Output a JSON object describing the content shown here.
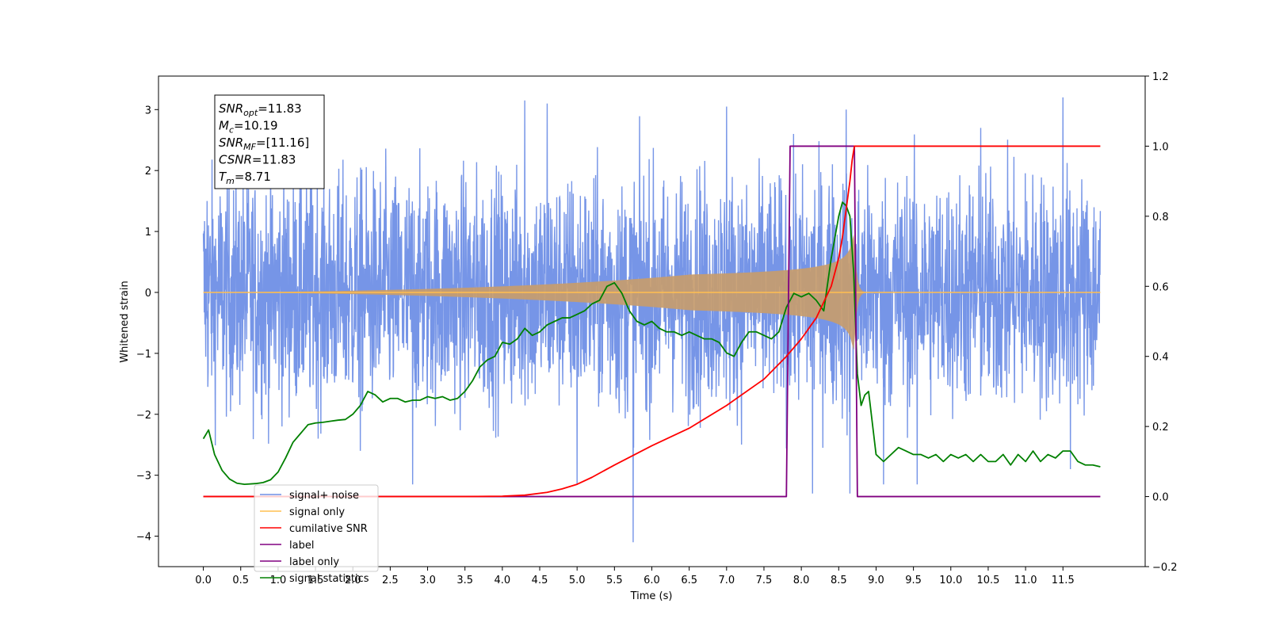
{
  "chart_data": {
    "type": "line",
    "xlabel": "Time (s)",
    "ylabel_left": "Whitened strain",
    "xlim": [
      -0.6,
      12.6
    ],
    "ylim_left": [
      -4.5,
      3.55
    ],
    "ylim_right": [
      -0.2,
      1.2
    ],
    "x_ticks": [
      "0.0",
      "0.5",
      "1.0",
      "1.5",
      "2.0",
      "2.5",
      "3.0",
      "3.5",
      "4.0",
      "4.5",
      "5.0",
      "5.5",
      "6.0",
      "6.5",
      "7.0",
      "7.5",
      "8.0",
      "8.5",
      "9.0",
      "9.5",
      "10.0",
      "10.5",
      "11.0",
      "11.5"
    ],
    "y_ticks_left": [
      "3",
      "2",
      "1",
      "0",
      "−1",
      "−2",
      "−3",
      "−4"
    ],
    "y_ticks_right": [
      "1.2",
      "1.0",
      "0.8",
      "0.6",
      "0.4",
      "0.2",
      "0.0",
      "−0.2"
    ],
    "info_box": [
      {
        "base": "SNR",
        "sub": "opt",
        "value": "=11.83"
      },
      {
        "base": "M",
        "sub": "c",
        "value": "=10.19"
      },
      {
        "base": "SNR",
        "sub": "MF",
        "value": "=[11.16]"
      },
      {
        "base": "CSNR",
        "sub": "",
        "value": "=11.83"
      },
      {
        "base": "T",
        "sub": "m",
        "value": "=8.71"
      }
    ],
    "legend": {
      "placement": "lower-left",
      "entries": [
        {
          "label": "signal+ noise",
          "color": "#6f8fe6"
        },
        {
          "label": "signal only",
          "color": "#ffbf50"
        },
        {
          "label": "cumilative SNR",
          "color": "#ff0000"
        },
        {
          "label": "label",
          "color": "#800080"
        },
        {
          "label": "label only",
          "color": "#800080"
        },
        {
          "label": "signal statistics",
          "color": "#008000"
        }
      ]
    },
    "series": [
      {
        "name": "signal+ noise",
        "axis": "left",
        "color": "#6f8fe6",
        "x_range": [
          0.0,
          12.0
        ],
        "stats": {
          "std": 0.95,
          "min": -4.1,
          "max": 3.2
        },
        "spikes": [
          [
            0.05,
            1.5
          ],
          [
            2.1,
            -2.6
          ],
          [
            2.8,
            -3.15
          ],
          [
            4.3,
            3.15
          ],
          [
            4.6,
            3.1
          ],
          [
            5.0,
            -3.15
          ],
          [
            5.75,
            -4.1
          ],
          [
            7.0,
            3.05
          ],
          [
            8.15,
            -3.3
          ],
          [
            8.6,
            3.0
          ],
          [
            8.65,
            -3.3
          ],
          [
            9.1,
            -3.15
          ],
          [
            9.55,
            -3.15
          ],
          [
            10.4,
            2.7
          ],
          [
            11.5,
            3.2
          ],
          [
            11.6,
            -2.9
          ]
        ]
      },
      {
        "name": "signal only",
        "axis": "left",
        "color": "#ffbf50",
        "x_range": [
          0.0,
          12.0
        ],
        "merger_time": 8.71,
        "peak_amplitude": 0.95
      },
      {
        "name": "cumilative SNR",
        "axis": "right",
        "x": [
          0.0,
          3.5,
          4.0,
          4.3,
          4.6,
          4.8,
          5.0,
          5.2,
          5.5,
          6.0,
          6.5,
          7.0,
          7.5,
          7.8,
          8.0,
          8.2,
          8.4,
          8.5,
          8.55,
          8.6,
          8.65,
          8.68,
          8.71,
          12.0
        ],
        "values": [
          0.0,
          0.0,
          0.001,
          0.004,
          0.012,
          0.022,
          0.035,
          0.055,
          0.09,
          0.145,
          0.195,
          0.26,
          0.335,
          0.4,
          0.45,
          0.51,
          0.6,
          0.68,
          0.74,
          0.82,
          0.9,
          0.96,
          1.0,
          1.0
        ]
      },
      {
        "name": "label",
        "axis": "right",
        "x": [
          0.0,
          7.8,
          7.85,
          8.71,
          8.75,
          12.0
        ],
        "values": [
          0.0,
          0.0,
          1.0,
          1.0,
          0.0,
          0.0
        ]
      },
      {
        "name": "signal statistics",
        "axis": "right",
        "x": [
          0.0,
          0.07,
          0.15,
          0.25,
          0.35,
          0.45,
          0.55,
          0.7,
          0.8,
          0.9,
          1.0,
          1.1,
          1.2,
          1.3,
          1.4,
          1.5,
          1.6,
          1.7,
          1.8,
          1.9,
          2.0,
          2.1,
          2.2,
          2.3,
          2.4,
          2.5,
          2.6,
          2.7,
          2.8,
          2.9,
          3.0,
          3.1,
          3.2,
          3.3,
          3.4,
          3.5,
          3.6,
          3.7,
          3.8,
          3.9,
          4.0,
          4.1,
          4.2,
          4.3,
          4.4,
          4.5,
          4.6,
          4.7,
          4.8,
          4.9,
          5.0,
          5.1,
          5.2,
          5.3,
          5.4,
          5.5,
          5.6,
          5.7,
          5.8,
          5.9,
          6.0,
          6.1,
          6.2,
          6.3,
          6.4,
          6.5,
          6.6,
          6.7,
          6.8,
          6.9,
          7.0,
          7.1,
          7.2,
          7.3,
          7.4,
          7.5,
          7.6,
          7.7,
          7.8,
          7.9,
          8.0,
          8.1,
          8.2,
          8.3,
          8.4,
          8.5,
          8.55,
          8.6,
          8.65,
          8.7,
          8.75,
          8.8,
          8.85,
          8.9,
          9.0,
          9.1,
          9.2,
          9.3,
          9.4,
          9.5,
          9.6,
          9.7,
          9.8,
          9.9,
          10.0,
          10.1,
          10.2,
          10.3,
          10.4,
          10.5,
          10.6,
          10.7,
          10.8,
          10.9,
          11.0,
          11.1,
          11.2,
          11.3,
          11.4,
          11.5,
          11.6,
          11.7,
          11.8,
          11.9,
          12.0
        ],
        "values": [
          0.165,
          0.19,
          0.12,
          0.075,
          0.05,
          0.038,
          0.035,
          0.037,
          0.04,
          0.048,
          0.07,
          0.11,
          0.155,
          0.18,
          0.205,
          0.21,
          0.212,
          0.215,
          0.218,
          0.22,
          0.235,
          0.26,
          0.3,
          0.29,
          0.27,
          0.28,
          0.28,
          0.27,
          0.275,
          0.275,
          0.285,
          0.28,
          0.285,
          0.275,
          0.28,
          0.3,
          0.33,
          0.37,
          0.39,
          0.4,
          0.44,
          0.435,
          0.45,
          0.48,
          0.46,
          0.47,
          0.49,
          0.5,
          0.51,
          0.51,
          0.52,
          0.53,
          0.55,
          0.56,
          0.6,
          0.61,
          0.58,
          0.53,
          0.5,
          0.49,
          0.5,
          0.48,
          0.47,
          0.47,
          0.46,
          0.47,
          0.46,
          0.45,
          0.45,
          0.44,
          0.41,
          0.4,
          0.44,
          0.47,
          0.47,
          0.46,
          0.45,
          0.47,
          0.54,
          0.58,
          0.57,
          0.58,
          0.56,
          0.53,
          0.68,
          0.8,
          0.84,
          0.83,
          0.8,
          0.64,
          0.35,
          0.26,
          0.29,
          0.3,
          0.12,
          0.1,
          0.12,
          0.14,
          0.13,
          0.12,
          0.12,
          0.11,
          0.12,
          0.1,
          0.12,
          0.11,
          0.12,
          0.1,
          0.12,
          0.1,
          0.1,
          0.12,
          0.09,
          0.12,
          0.1,
          0.13,
          0.1,
          0.12,
          0.11,
          0.13,
          0.13,
          0.1,
          0.09,
          0.09,
          0.085
        ]
      }
    ]
  }
}
